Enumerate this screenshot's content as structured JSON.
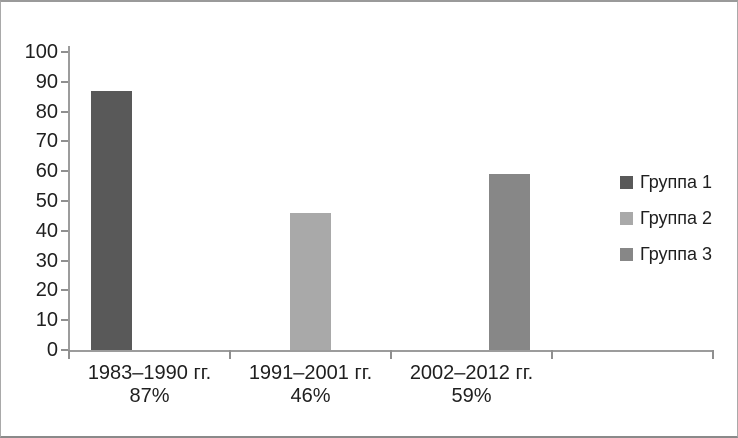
{
  "chart_data": {
    "type": "bar",
    "title": "",
    "categories": [
      "1983–1990 гг.",
      "1991–2001 гг.",
      "2002–2012 гг."
    ],
    "category_sublabels": [
      "87%",
      "46%",
      "59%"
    ],
    "series": [
      {
        "name": "Группа 1",
        "color": "#595959",
        "values": [
          87,
          null,
          null
        ]
      },
      {
        "name": "Группа 2",
        "color": "#a9a9a9",
        "values": [
          null,
          46,
          null
        ]
      },
      {
        "name": "Группа 3",
        "color": "#878787",
        "values": [
          null,
          null,
          59
        ]
      }
    ],
    "xlabel": "",
    "ylabel": "",
    "ylim": [
      0,
      100
    ],
    "yticks": [
      0,
      10,
      20,
      30,
      40,
      50,
      60,
      70,
      80,
      90,
      100
    ],
    "legend_position": "right",
    "grid": false,
    "plot_slots": 4,
    "axis_color": "#9c9c9c",
    "text_color": "#1f1f1f"
  }
}
